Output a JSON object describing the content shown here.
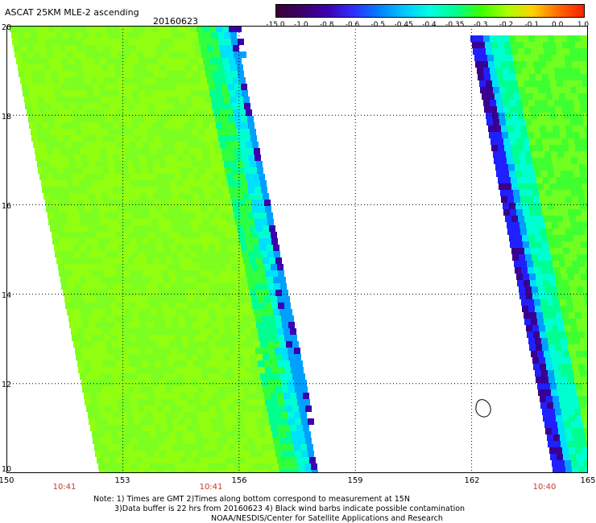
{
  "header": {
    "title": "ASCAT 25KM MLE-2 ascending",
    "date": "20160623"
  },
  "colorbar": {
    "labels": [
      "-15.0",
      "-1.0",
      "-0.8",
      "-0.6",
      "-0.5",
      "-0.45",
      "-0.4",
      "-0.35",
      "-0.3",
      "-0.2",
      "-0.1",
      "0.0",
      "1.0"
    ],
    "colors": [
      "#3d0034",
      "#3a0066",
      "#3f00b0",
      "#2d2dff",
      "#0080ff",
      "#00c8ff",
      "#00ffe0",
      "#00ff90",
      "#3cff00",
      "#a8ff00",
      "#ffd000",
      "#ff6a00",
      "#ff2000"
    ]
  },
  "axes": {
    "x_ticks": [
      "150",
      "153",
      "156",
      "159",
      "162",
      "165"
    ],
    "y_ticks": [
      "20",
      "18",
      "16",
      "14",
      "12",
      "10"
    ]
  },
  "times": [
    "10:41",
    "10:41",
    "10:40"
  ],
  "notes": {
    "line1": "Note: 1) Times are GMT 2)Times along bottom correspond to measurement at 15N",
    "line2": "3)Data buffer is 22 hrs from 20160623 4) Black wind barbs indicate possible contamination",
    "line3": "NOAA/NESDIS/Center for Satellite Applications and Research"
  }
}
